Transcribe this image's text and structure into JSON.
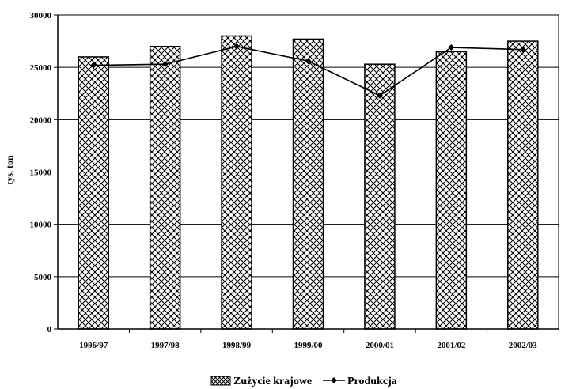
{
  "chart_data": {
    "type": "bar",
    "categories": [
      "1996/97",
      "1997/98",
      "1998/99",
      "1999/00",
      "2000/01",
      "2001/02",
      "2002/03"
    ],
    "series": [
      {
        "name": "Zużycie krajowe",
        "type": "bar",
        "pattern": "crosshatch",
        "values": [
          26000,
          27000,
          28000,
          27700,
          25300,
          26500,
          27500
        ]
      },
      {
        "name": "Produkcja",
        "type": "line",
        "marker": "diamond",
        "values": [
          25200,
          25300,
          27000,
          25600,
          22300,
          26900,
          26700
        ]
      }
    ],
    "yticks": [
      "0",
      "5000",
      "10000",
      "15000",
      "20000",
      "25000",
      "30000"
    ],
    "ylabel": "tys. ton",
    "xlabel": "",
    "title": "",
    "ylim": [
      0,
      30000
    ],
    "grid": true,
    "legend": "bottom",
    "colors": {
      "ink": "#000000",
      "background": "#ffffff"
    }
  }
}
